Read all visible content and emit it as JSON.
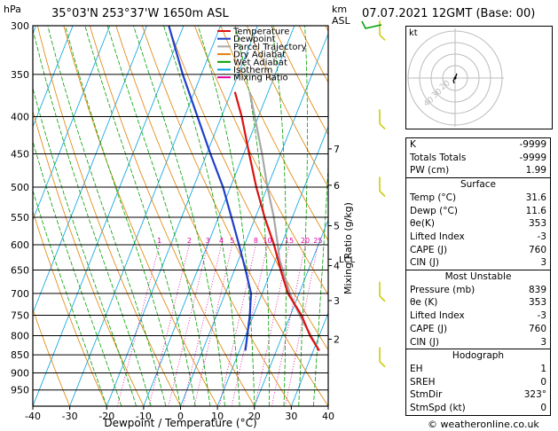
{
  "header": {
    "location": "35°03'N  253°37'W  1650m  ASL",
    "datetime": "07.07.2021  12GMT  (Base: 00)",
    "hpa_label": "hPa",
    "km_label": "km",
    "asl_label": "ASL"
  },
  "chart_data": {
    "type": "skew-T log-P diagram",
    "xlabel": "Dewpoint / Temperature (°C)",
    "right_axis_label": "Mixing Ratio (g/kg)",
    "x_ticks": [
      -40,
      -30,
      -20,
      -10,
      0,
      10,
      20,
      30,
      40
    ],
    "pressure_levels": [
      300,
      350,
      400,
      450,
      500,
      550,
      600,
      650,
      700,
      750,
      800,
      850,
      900,
      950
    ],
    "ylim_hpa": [
      1000,
      300
    ],
    "km_ticks": [
      {
        "km": "7",
        "p": 443
      },
      {
        "km": "6",
        "p": 497
      },
      {
        "km": "5",
        "p": 565
      },
      {
        "km": "4",
        "p": 641
      },
      {
        "km": "3",
        "p": 716
      },
      {
        "km": "2",
        "p": 809
      }
    ],
    "lcl": {
      "label": "LCL",
      "p": 628
    },
    "mixing_ratio_labels": [
      "1",
      "2",
      "3",
      "4",
      "5",
      "8",
      "10",
      "15",
      "20",
      "25"
    ],
    "legend": [
      {
        "name": "Temperature",
        "color": "#dd1111"
      },
      {
        "name": "Dewpoint",
        "color": "#1f3fcc"
      },
      {
        "name": "Parcel Trajectory",
        "color": "#a8a8a8"
      },
      {
        "name": "Dry Adiabat",
        "color": "#e08000"
      },
      {
        "name": "Wet Adiabat",
        "color": "#00a000"
      },
      {
        "name": "Isotherm",
        "color": "#00a0e0"
      },
      {
        "name": "Mixing Ratio",
        "color": "#e000a0"
      }
    ],
    "temperature": [
      [
        839,
        31.6
      ],
      [
        800,
        27.5
      ],
      [
        750,
        23.0
      ],
      [
        700,
        17.0
      ],
      [
        650,
        12.5
      ],
      [
        600,
        8.0
      ],
      [
        550,
        2.5
      ],
      [
        500,
        -3.0
      ],
      [
        450,
        -8.5
      ],
      [
        400,
        -14.5
      ],
      [
        370,
        -19.0
      ]
    ],
    "dewpoint": [
      [
        839,
        11.6
      ],
      [
        800,
        10.5
      ],
      [
        750,
        9.0
      ],
      [
        700,
        7.0
      ],
      [
        650,
        3.0
      ],
      [
        600,
        -1.5
      ],
      [
        550,
        -6.5
      ],
      [
        500,
        -12.0
      ],
      [
        450,
        -19.0
      ],
      [
        400,
        -26.5
      ],
      [
        350,
        -35.0
      ],
      [
        300,
        -44.0
      ]
    ],
    "parcel": [
      [
        839,
        31.6
      ],
      [
        750,
        22.5
      ],
      [
        700,
        17.5
      ],
      [
        628,
        11.0
      ],
      [
        600,
        9.0
      ],
      [
        550,
        5.0
      ],
      [
        500,
        0.0
      ],
      [
        450,
        -5.0
      ],
      [
        400,
        -11.0
      ],
      [
        370,
        -15.0
      ]
    ]
  },
  "hodograph": {
    "label": "kt",
    "ring_labels": [
      "40",
      "30",
      "20"
    ]
  },
  "indices": [
    {
      "label": "K",
      "value": "-9999"
    },
    {
      "label": "Totals Totals",
      "value": "-9999"
    },
    {
      "label": "PW (cm)",
      "value": "1.99"
    }
  ],
  "surface": {
    "title": "Surface",
    "rows": [
      {
        "label": "Temp (°C)",
        "value": "31.6"
      },
      {
        "label": "Dewp (°C)",
        "value": "11.6"
      },
      {
        "label": "θe(K)",
        "value": "353"
      },
      {
        "label": "Lifted Index",
        "value": "-3"
      },
      {
        "label": "CAPE (J)",
        "value": "760"
      },
      {
        "label": "CIN (J)",
        "value": "3"
      }
    ]
  },
  "most_unstable": {
    "title": "Most Unstable",
    "rows": [
      {
        "label": "Pressure (mb)",
        "value": "839"
      },
      {
        "label": "θe (K)",
        "value": "353"
      },
      {
        "label": "Lifted Index",
        "value": "-3"
      },
      {
        "label": "CAPE (J)",
        "value": "760"
      },
      {
        "label": "CIN (J)",
        "value": "3"
      }
    ]
  },
  "hodograph_table": {
    "title": "Hodograph",
    "rows": [
      {
        "label": "EH",
        "value": "1"
      },
      {
        "label": "SREH",
        "value": "0"
      },
      {
        "label": "StmDir",
        "value": "323°"
      },
      {
        "label": "StmSpd (kt)",
        "value": "0"
      }
    ]
  },
  "copyright": "© weatheronline.co.uk"
}
